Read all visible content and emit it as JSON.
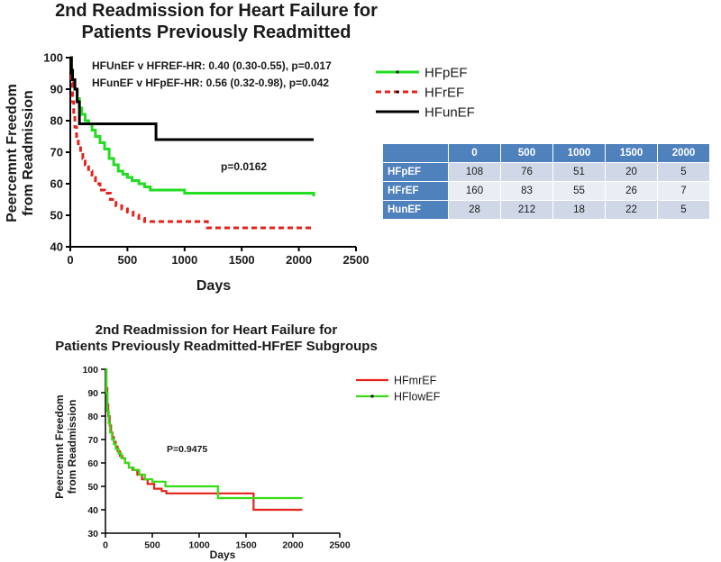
{
  "title_top": [
    "2nd Readmission for Heart Failure for",
    "Patients Previously Readmitted"
  ],
  "title_bottom": [
    "2nd Readmission for Heart Failure for",
    "Patients Previously Readmitted-HFrEF Subgroups"
  ],
  "colors": {
    "HFpEF": "#22dd22",
    "HFrEF": "#e5221b",
    "HFunEF": "#000000",
    "HFmrEF": "#e5221b",
    "HFlowEF": "#33dd11",
    "table_header": "#4f81bd"
  },
  "chart_data": [
    {
      "type": "line",
      "step": true,
      "xlabel": "Days",
      "ylabel": [
        "Peercemnt Freedom",
        "from Readmission"
      ],
      "xlim": [
        0,
        2500
      ],
      "ylim": [
        40,
        100
      ],
      "xticks": [
        0,
        500,
        1000,
        1500,
        2000,
        2500
      ],
      "yticks": [
        40,
        50,
        60,
        70,
        80,
        90,
        100
      ],
      "legend_position": "right",
      "annotations": [
        "HFUnEF v HFREF-HR: 0.40 (0.30-0.55), p=0.017",
        "HFunEF v HFpEF-HR: 0.56 (0.32-0.98), p=0.042",
        "p=0.0162"
      ],
      "series": [
        {
          "name": "HFpEF",
          "style": "solid",
          "x": [
            0,
            10,
            20,
            40,
            60,
            80,
            100,
            130,
            160,
            190,
            220,
            260,
            300,
            340,
            380,
            420,
            460,
            500,
            540,
            600,
            650,
            700,
            1000,
            2130
          ],
          "y": [
            100,
            96,
            93,
            90,
            87,
            84,
            82,
            80,
            79,
            77,
            75,
            73,
            71,
            68,
            66,
            64,
            63,
            62,
            61,
            60,
            59,
            58,
            57,
            56
          ]
        },
        {
          "name": "HFrEF",
          "style": "dashed",
          "x": [
            0,
            10,
            20,
            30,
            40,
            55,
            70,
            90,
            110,
            130,
            160,
            190,
            220,
            260,
            300,
            350,
            400,
            450,
            500,
            550,
            600,
            650,
            1200,
            2130
          ],
          "y": [
            100,
            92,
            86,
            82,
            78,
            75,
            72,
            70,
            68,
            66,
            64,
            62,
            60,
            58,
            57,
            55,
            53,
            52,
            51,
            50,
            49,
            48,
            46,
            46
          ]
        },
        {
          "name": "HFunEF",
          "style": "solid",
          "x": [
            0,
            10,
            20,
            40,
            60,
            80,
            750,
            2130
          ],
          "y": [
            100,
            96,
            93,
            90,
            86,
            79,
            74,
            74
          ]
        }
      ],
      "table": {
        "columns": [
          "0",
          "500",
          "1000",
          "1500",
          "2000"
        ],
        "rows": [
          {
            "label": "HFpEF",
            "values": [
              "108",
              "76",
              "51",
              "20",
              "5"
            ]
          },
          {
            "label": "HFrEF",
            "values": [
              "160",
              "83",
              "55",
              "26",
              "7"
            ]
          },
          {
            "label": "HunEF",
            "values": [
              "28",
              "212",
              "18",
              "22",
              "5"
            ]
          }
        ]
      }
    },
    {
      "type": "line",
      "step": true,
      "xlabel": "Days",
      "ylabel": [
        "Peercemnt Freedom",
        "from Readmission"
      ],
      "xlim": [
        0,
        2500
      ],
      "ylim": [
        30,
        100
      ],
      "xticks": [
        0,
        500,
        1000,
        1500,
        2000,
        2500
      ],
      "yticks": [
        30,
        40,
        50,
        60,
        70,
        80,
        90,
        100
      ],
      "legend_position": "right",
      "annotations": [
        "P=0.9475"
      ],
      "series": [
        {
          "name": "HFmrEF",
          "style": "solid",
          "x": [
            0,
            10,
            20,
            30,
            45,
            60,
            75,
            90,
            110,
            130,
            155,
            180,
            210,
            250,
            290,
            340,
            390,
            450,
            520,
            600,
            650,
            1580,
            2100
          ],
          "y": [
            100,
            92,
            85,
            80,
            76,
            73,
            71,
            69,
            67,
            65,
            63,
            62,
            60,
            58,
            57,
            55,
            53,
            51,
            49,
            48,
            47,
            40,
            40
          ]
        },
        {
          "name": "HFlowEF",
          "style": "solid",
          "x": [
            0,
            10,
            20,
            35,
            50,
            70,
            90,
            110,
            140,
            170,
            210,
            250,
            300,
            360,
            420,
            500,
            640,
            1200,
            2100
          ],
          "y": [
            100,
            90,
            82,
            77,
            73,
            70,
            68,
            66,
            64,
            62,
            60,
            58,
            57,
            55,
            53,
            52,
            50,
            45,
            45
          ]
        }
      ]
    }
  ]
}
